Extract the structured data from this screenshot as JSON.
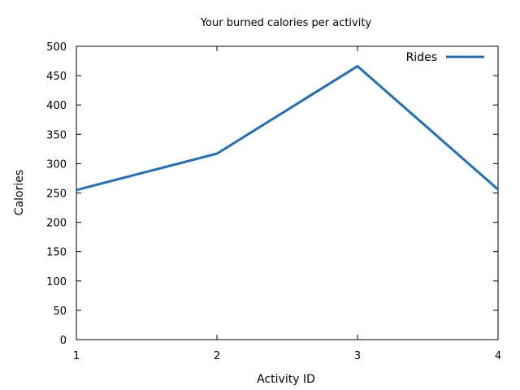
{
  "chart_data": {
    "type": "line",
    "title": "Your burned calories per activity",
    "xlabel": "Activity ID",
    "ylabel": "Calories",
    "x": [
      1,
      2,
      3,
      4
    ],
    "series": [
      {
        "name": "Rides",
        "values": [
          255,
          317,
          466,
          256
        ],
        "color": "#1f6fbf"
      }
    ],
    "xlim": [
      1,
      4
    ],
    "ylim": [
      0,
      500
    ],
    "xticks": [
      "1",
      "2",
      "3",
      "4"
    ],
    "yticks": [
      "0",
      "50",
      "100",
      "150",
      "200",
      "250",
      "300",
      "350",
      "400",
      "450",
      "500"
    ],
    "grid": false,
    "legend": "top-right"
  }
}
